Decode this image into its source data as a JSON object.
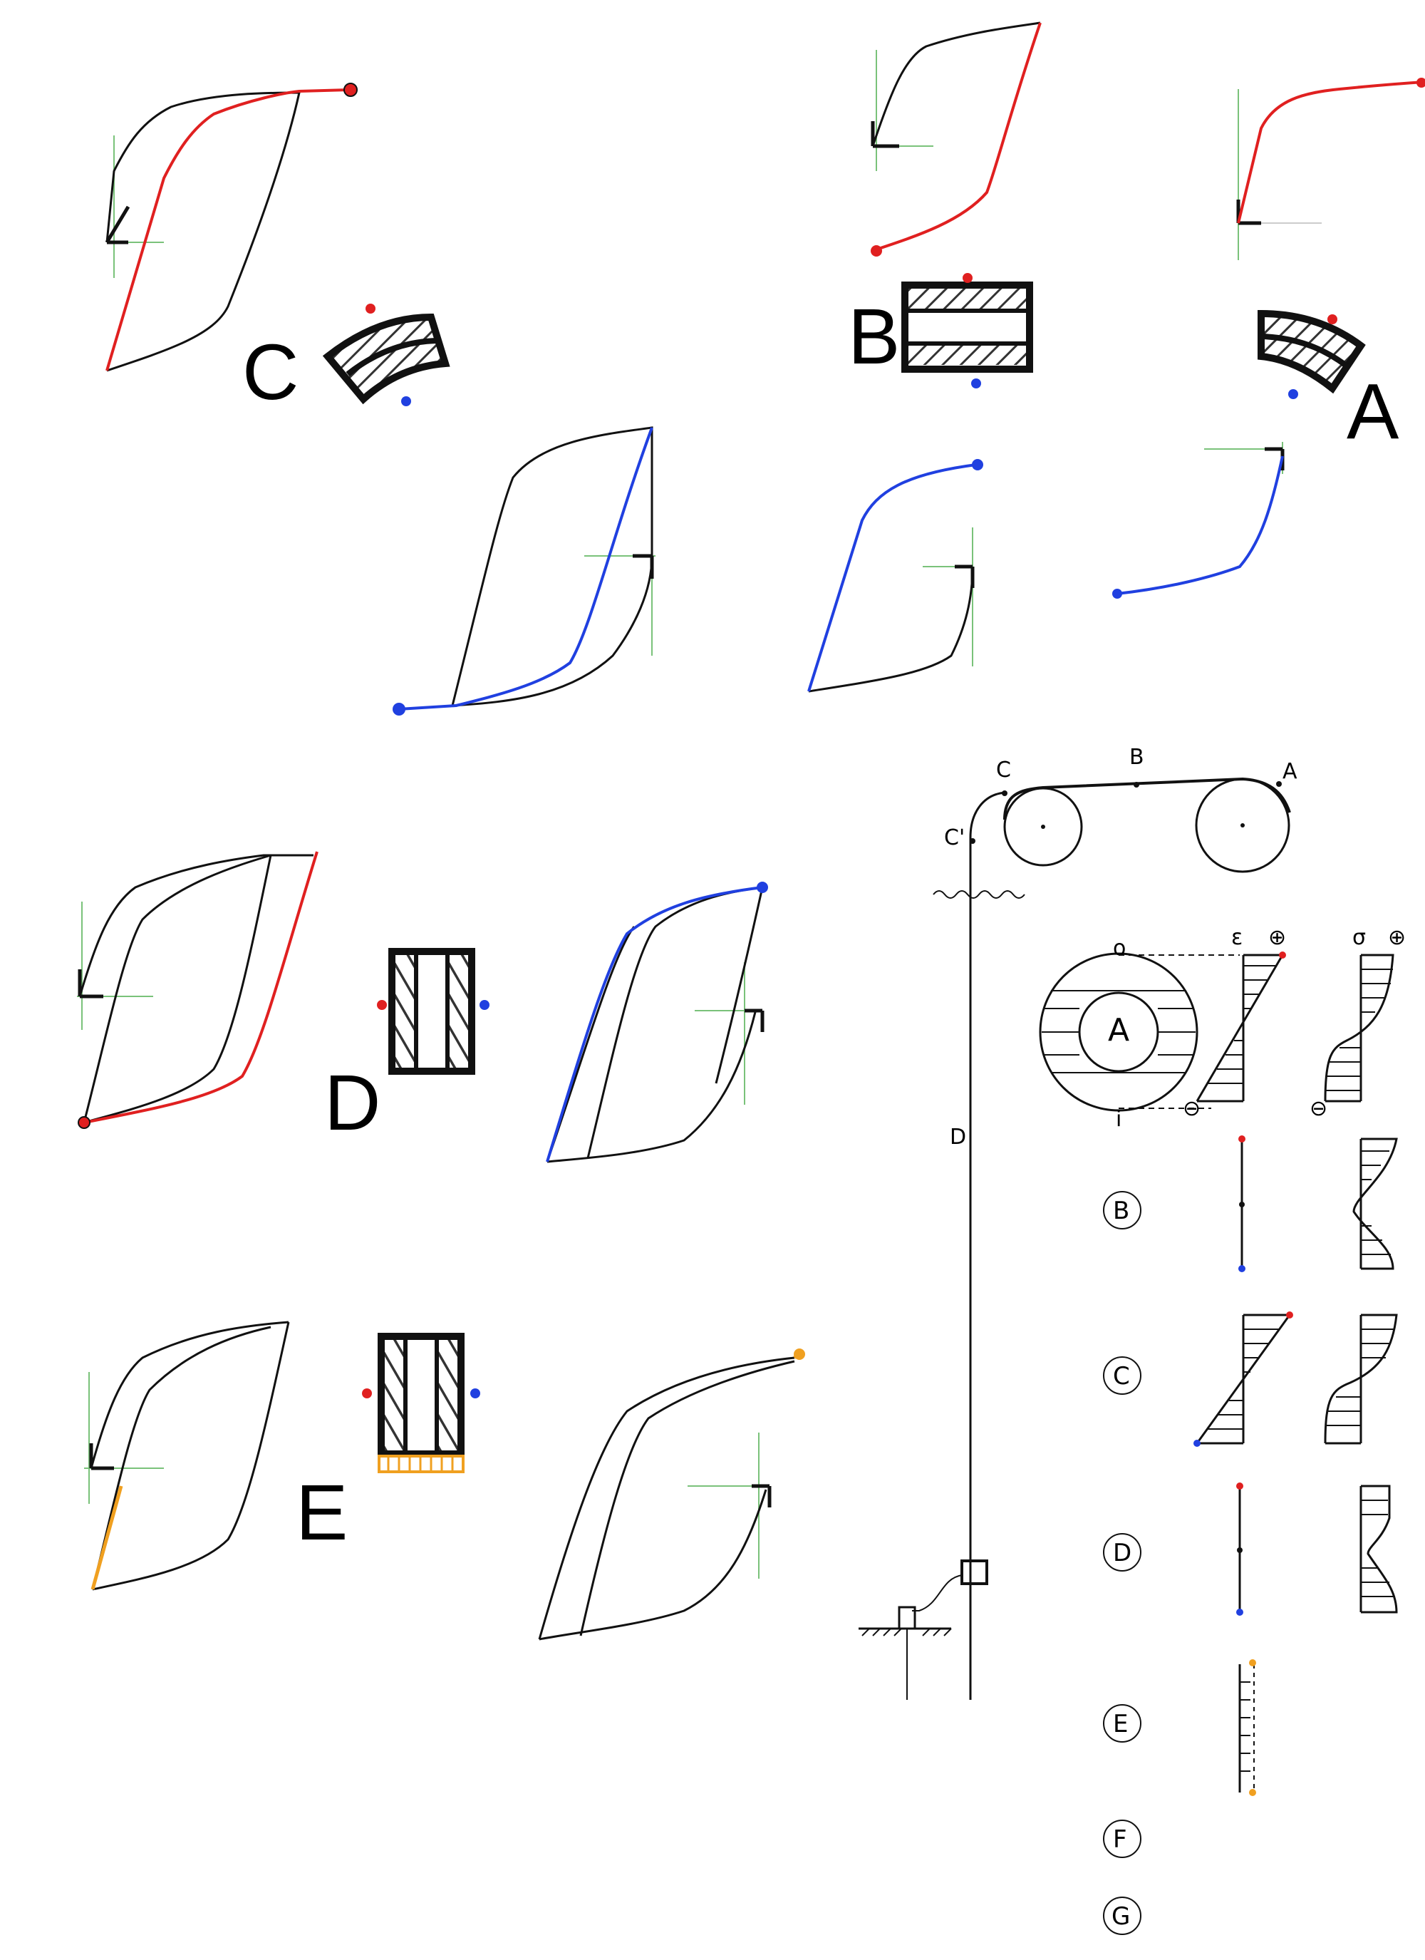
{
  "colors": {
    "line": "#111111",
    "red": "#e02020",
    "blue": "#2040e0",
    "orange": "#f0a020",
    "axis": "#7ac27a",
    "hatch": "#333333"
  },
  "section_labels": {
    "a": "A",
    "b": "B",
    "c": "C",
    "d": "D",
    "e": "E"
  },
  "belt_diagram": {
    "point_c": "C",
    "point_b": "B",
    "point_a": "A",
    "point_c_prime": "C'",
    "strand_d": "D"
  },
  "cross_section": {
    "top_marker": "o",
    "bottom_marker": "i",
    "center_label": "A",
    "strain_symbol": "ε",
    "stress_symbol": "σ",
    "plus": "⊕",
    "minus": "⊖"
  },
  "rows": {
    "b": "B",
    "c": "C",
    "d": "D",
    "e": "E",
    "f": "F",
    "g": "G"
  }
}
